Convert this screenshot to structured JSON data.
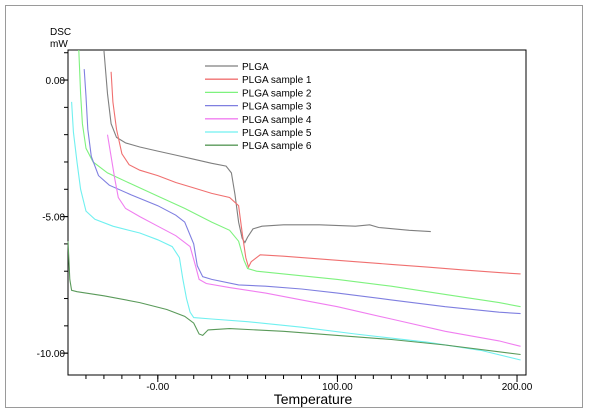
{
  "chart_data": {
    "type": "line",
    "title": "",
    "ylabel_line1": "DSC",
    "ylabel_line2": "mW",
    "xlabel": "Temperature",
    "xlim": [
      -50,
      205
    ],
    "ylim": [
      -10.8,
      1.1
    ],
    "xticks": [
      {
        "value": 0,
        "label": "-0.00"
      },
      {
        "value": 100,
        "label": "100.00"
      },
      {
        "value": 200,
        "label": "200.00"
      }
    ],
    "yticks": [
      {
        "value": 0,
        "label": "0.00"
      },
      {
        "value": -5,
        "label": "-5.00"
      },
      {
        "value": -10,
        "label": "-10.00"
      }
    ],
    "legend_position": "top-center",
    "series": [
      {
        "name": "PLGA",
        "color": "#7f7f7f",
        "points": [
          [
            -30,
            1.1
          ],
          [
            -28,
            -0.5
          ],
          [
            -26,
            -1.6
          ],
          [
            -23,
            -2.1
          ],
          [
            -18,
            -2.3
          ],
          [
            -10,
            -2.45
          ],
          [
            0,
            -2.6
          ],
          [
            10,
            -2.75
          ],
          [
            20,
            -2.9
          ],
          [
            30,
            -3.05
          ],
          [
            38,
            -3.15
          ],
          [
            41,
            -3.4
          ],
          [
            43,
            -4.2
          ],
          [
            45,
            -5.2
          ],
          [
            47,
            -5.8
          ],
          [
            48.5,
            -5.95
          ],
          [
            50,
            -5.75
          ],
          [
            53,
            -5.45
          ],
          [
            58,
            -5.35
          ],
          [
            70,
            -5.3
          ],
          [
            90,
            -5.3
          ],
          [
            110,
            -5.35
          ],
          [
            118,
            -5.3
          ],
          [
            123,
            -5.4
          ],
          [
            140,
            -5.5
          ],
          [
            152,
            -5.55
          ]
        ]
      },
      {
        "name": "PLGA sample 1",
        "color": "#f07070",
        "points": [
          [
            -26,
            0.3
          ],
          [
            -25,
            -0.8
          ],
          [
            -23,
            -1.8
          ],
          [
            -20,
            -2.7
          ],
          [
            -16,
            -3.1
          ],
          [
            -10,
            -3.3
          ],
          [
            0,
            -3.5
          ],
          [
            10,
            -3.75
          ],
          [
            20,
            -3.95
          ],
          [
            30,
            -4.15
          ],
          [
            40,
            -4.3
          ],
          [
            45,
            -4.6
          ],
          [
            47,
            -5.6
          ],
          [
            49,
            -6.5
          ],
          [
            50.5,
            -6.85
          ],
          [
            52,
            -6.65
          ],
          [
            57,
            -6.4
          ],
          [
            70,
            -6.45
          ],
          [
            90,
            -6.55
          ],
          [
            110,
            -6.65
          ],
          [
            130,
            -6.75
          ],
          [
            150,
            -6.85
          ],
          [
            170,
            -6.95
          ],
          [
            190,
            -7.05
          ],
          [
            202,
            -7.1
          ]
        ]
      },
      {
        "name": "PLGA sample 2",
        "color": "#7ef27e",
        "points": [
          [
            -44,
            1.1
          ],
          [
            -43,
            -0.5
          ],
          [
            -42,
            -1.6
          ],
          [
            -40,
            -2.5
          ],
          [
            -36,
            -3.0
          ],
          [
            -28,
            -3.4
          ],
          [
            -15,
            -3.8
          ],
          [
            0,
            -4.25
          ],
          [
            15,
            -4.7
          ],
          [
            30,
            -5.2
          ],
          [
            40,
            -5.5
          ],
          [
            45,
            -5.9
          ],
          [
            48,
            -6.6
          ],
          [
            50,
            -6.9
          ],
          [
            55,
            -7.0
          ],
          [
            70,
            -7.1
          ],
          [
            100,
            -7.3
          ],
          [
            130,
            -7.55
          ],
          [
            160,
            -7.85
          ],
          [
            190,
            -8.15
          ],
          [
            202,
            -8.3
          ]
        ]
      },
      {
        "name": "PLGA sample 3",
        "color": "#7f7fe0",
        "points": [
          [
            -41,
            0.4
          ],
          [
            -40,
            -0.6
          ],
          [
            -39,
            -1.8
          ],
          [
            -37,
            -2.8
          ],
          [
            -33,
            -3.5
          ],
          [
            -27,
            -3.85
          ],
          [
            -15,
            -4.2
          ],
          [
            0,
            -4.6
          ],
          [
            10,
            -4.95
          ],
          [
            15,
            -5.2
          ],
          [
            20,
            -6.0
          ],
          [
            22,
            -6.8
          ],
          [
            25,
            -7.2
          ],
          [
            30,
            -7.3
          ],
          [
            45,
            -7.5
          ],
          [
            60,
            -7.55
          ],
          [
            80,
            -7.65
          ],
          [
            100,
            -7.8
          ],
          [
            130,
            -8.05
          ],
          [
            160,
            -8.3
          ],
          [
            190,
            -8.5
          ],
          [
            202,
            -8.55
          ]
        ]
      },
      {
        "name": "PLGA sample 4",
        "color": "#f07ef0",
        "points": [
          [
            -28,
            -2.0
          ],
          [
            -26,
            -2.8
          ],
          [
            -24,
            -3.6
          ],
          [
            -22,
            -4.3
          ],
          [
            -18,
            -4.7
          ],
          [
            -10,
            -5.0
          ],
          [
            0,
            -5.35
          ],
          [
            10,
            -5.7
          ],
          [
            18,
            -6.1
          ],
          [
            21,
            -6.8
          ],
          [
            23,
            -7.3
          ],
          [
            27,
            -7.45
          ],
          [
            40,
            -7.6
          ],
          [
            60,
            -7.8
          ],
          [
            80,
            -8.05
          ],
          [
            100,
            -8.3
          ],
          [
            130,
            -8.75
          ],
          [
            160,
            -9.2
          ],
          [
            190,
            -9.55
          ],
          [
            202,
            -9.75
          ]
        ]
      },
      {
        "name": "PLGA sample 5",
        "color": "#70f0f0",
        "points": [
          [
            -48,
            -0.8
          ],
          [
            -47,
            -1.9
          ],
          [
            -45,
            -3.0
          ],
          [
            -43,
            -4.0
          ],
          [
            -40,
            -4.8
          ],
          [
            -35,
            -5.1
          ],
          [
            -25,
            -5.35
          ],
          [
            -10,
            -5.6
          ],
          [
            0,
            -5.85
          ],
          [
            8,
            -6.1
          ],
          [
            12,
            -6.5
          ],
          [
            14,
            -7.3
          ],
          [
            16,
            -8.0
          ],
          [
            18,
            -8.5
          ],
          [
            20,
            -8.7
          ],
          [
            30,
            -8.75
          ],
          [
            50,
            -8.85
          ],
          [
            80,
            -9.05
          ],
          [
            110,
            -9.3
          ],
          [
            150,
            -9.6
          ],
          [
            180,
            -9.9
          ],
          [
            202,
            -10.25
          ]
        ]
      },
      {
        "name": "PLGA sample 6",
        "color": "#5a9a5a",
        "points": [
          [
            -50,
            -5.9
          ],
          [
            -49.5,
            -6.6
          ],
          [
            -49,
            -7.3
          ],
          [
            -48,
            -7.7
          ],
          [
            -45,
            -7.75
          ],
          [
            -30,
            -7.9
          ],
          [
            -10,
            -8.15
          ],
          [
            5,
            -8.4
          ],
          [
            15,
            -8.65
          ],
          [
            20,
            -8.9
          ],
          [
            23,
            -9.3
          ],
          [
            25,
            -9.35
          ],
          [
            28,
            -9.15
          ],
          [
            40,
            -9.1
          ],
          [
            70,
            -9.2
          ],
          [
            100,
            -9.35
          ],
          [
            130,
            -9.5
          ],
          [
            160,
            -9.7
          ],
          [
            190,
            -9.95
          ],
          [
            202,
            -10.05
          ]
        ]
      }
    ]
  }
}
